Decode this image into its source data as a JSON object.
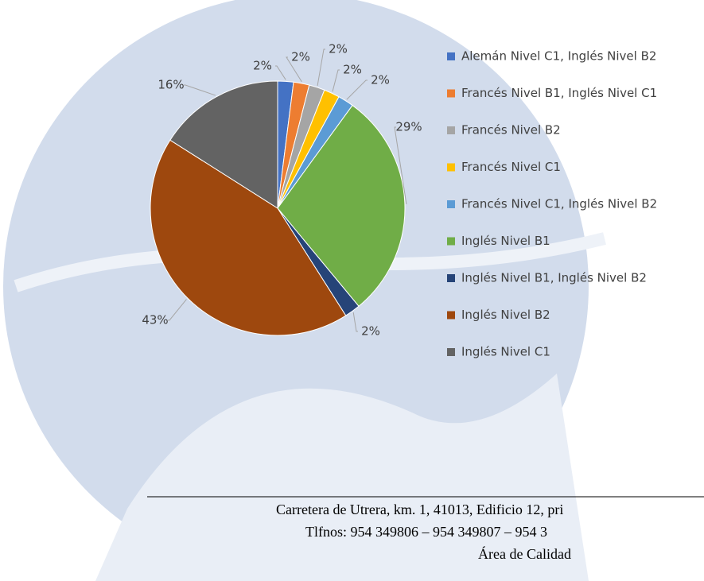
{
  "chart_data": {
    "type": "pie",
    "categories": [
      "Alemán Nivel C1, Inglés Nivel B2",
      "Francés Nivel B1, Inglés Nivel C1",
      "Francés Nivel B2",
      "Francés Nivel C1",
      "Francés Nivel C1, Inglés Nivel B2",
      "Inglés Nivel B1",
      "Inglés Nivel B1, Inglés Nivel B2",
      "Inglés Nivel B2",
      "Inglés Nivel C1"
    ],
    "values": [
      2,
      2,
      2,
      2,
      2,
      29,
      2,
      43,
      16
    ],
    "value_labels": [
      "2%",
      "2%",
      "2%",
      "2%",
      "2%",
      "29%",
      "2%",
      "43%",
      "16%"
    ],
    "colors": [
      "#4472c4",
      "#ed7d31",
      "#a5a5a5",
      "#ffc000",
      "#5b9bd5",
      "#70ad47",
      "#264478",
      "#9e480e",
      "#636363"
    ],
    "legend": "right"
  },
  "footer": {
    "lines": [
      "Carretera de Utrera, km. 1, 41013, Edificio 12, pri",
      "Tlfnos: 954 349806 – 954 349807 – 954 3",
      "Área de Calidad"
    ]
  }
}
